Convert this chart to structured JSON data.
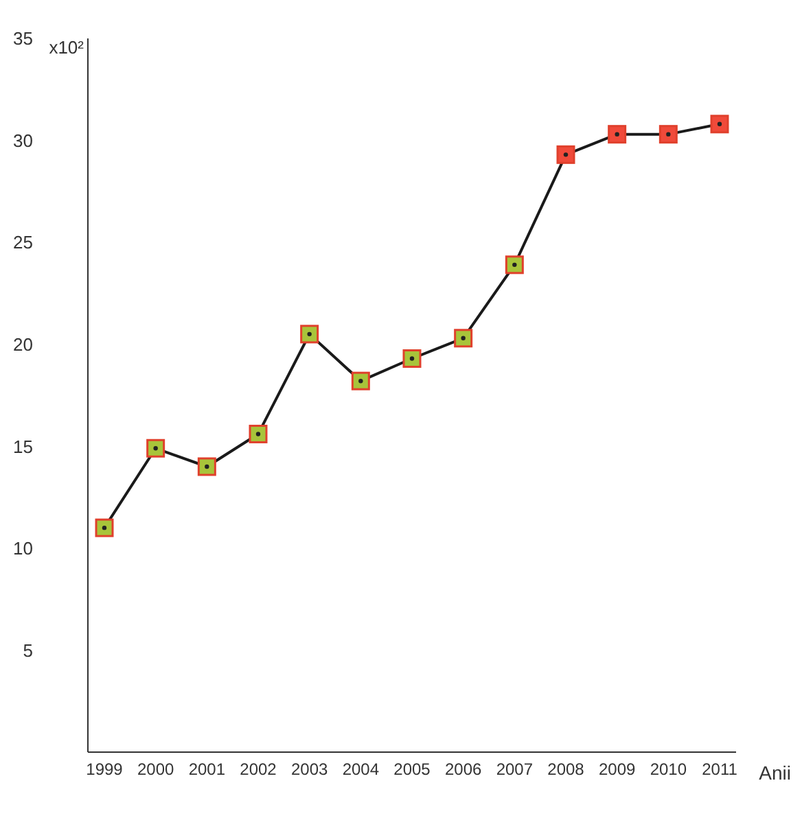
{
  "chart_data": {
    "type": "line",
    "xlabel": "Anii",
    "categories": [
      "1999",
      "2000",
      "2001",
      "2002",
      "2003",
      "2004",
      "2005",
      "2006",
      "2007",
      "2008",
      "2009",
      "2010",
      "2011"
    ],
    "series": [
      {
        "color": "#1a1a1a",
        "values": [
          11.0,
          14.9,
          14.0,
          15.6,
          20.5,
          18.2,
          19.3,
          20.3,
          23.9,
          29.3,
          30.3,
          30.3,
          30.8
        ],
        "colors": [
          "#a8c43a",
          "#a8c43a",
          "#a8c43a",
          "#a8c43a",
          "#a8c43a",
          "#a8c43a",
          "#a8c43a",
          "#a8c43a",
          "#a8c43a",
          "#f04a3a",
          "#f04a3a",
          "#f04a3a",
          "#f04a3a"
        ]
      }
    ],
    "ylim": [
      0,
      35
    ],
    "yticks": [
      5,
      10,
      15,
      20,
      25,
      30,
      35
    ],
    "ylabel": "x10²",
    "marker": "square",
    "line_style": "solid",
    "grid": false,
    "legend": false
  }
}
